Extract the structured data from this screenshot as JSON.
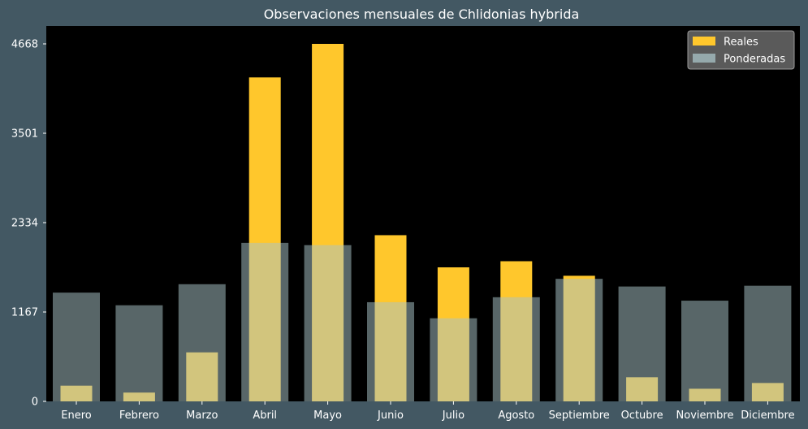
{
  "chart_data": {
    "type": "bar",
    "title": "Observaciones mensuales de Chlidonias hybrida",
    "xlabel": "",
    "ylabel": "",
    "categories": [
      "Enero",
      "Febrero",
      "Marzo",
      "Abril",
      "Mayo",
      "Junio",
      "Julio",
      "Agosto",
      "Septiembre",
      "Octubre",
      "Noviembre",
      "Diciembre"
    ],
    "series": [
      {
        "name": "Reales",
        "color": "#ffc72c",
        "values": [
          205,
          115,
          640,
          4230,
          4668,
          2170,
          1750,
          1830,
          1640,
          315,
          165,
          240
        ]
      },
      {
        "name": "Ponderadas",
        "color": "#a9c4c8",
        "opacity": 0.52,
        "values": [
          1420,
          1255,
          1530,
          2070,
          2040,
          1295,
          1085,
          1360,
          1600,
          1500,
          1315,
          1510
        ]
      }
    ],
    "yticks": [
      0,
      1167,
      2334,
      3501,
      4668
    ],
    "ytick_labels": [
      "0",
      "1167",
      "2334",
      "3501",
      "4668"
    ],
    "ylim": [
      0,
      4668
    ],
    "grid": false,
    "legend_position": "top-right",
    "plot_background": "#000000"
  }
}
